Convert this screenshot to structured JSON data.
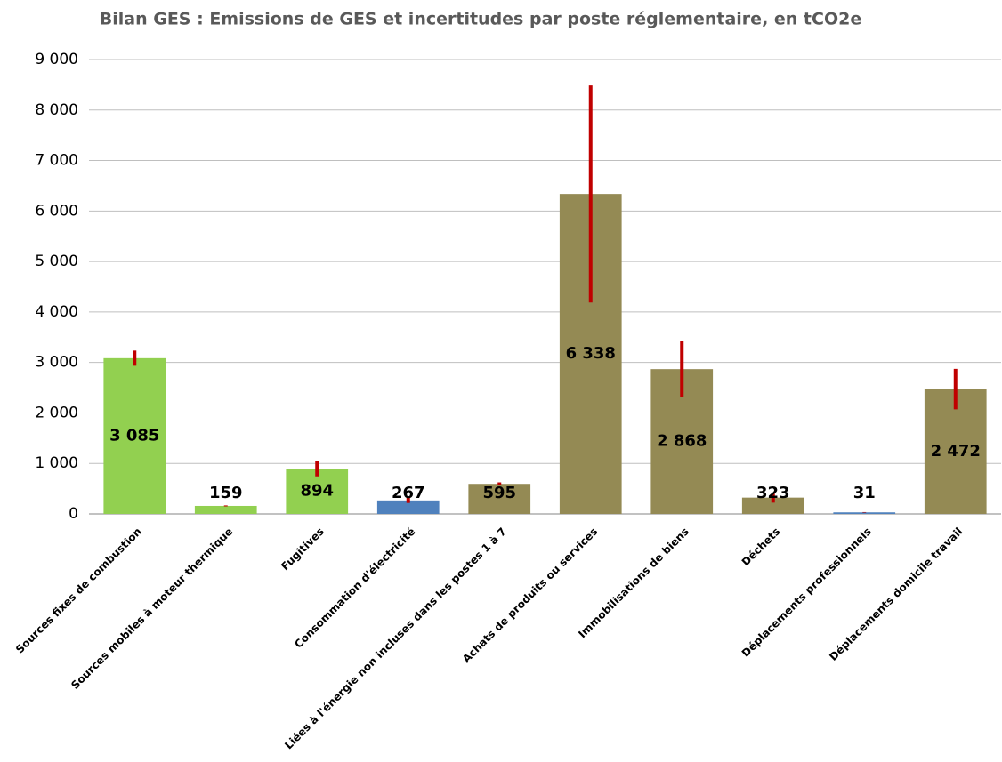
{
  "chart_data": {
    "type": "bar",
    "title": "Bilan GES : Emissions de GES et incertitudes par poste réglementaire, en tCO2e",
    "categories": [
      "Sources fixes de combustion",
      "Sources mobiles à moteur thermique",
      "Fugitives",
      "Consommation d'électricité",
      "Liées à l'énergie non incluses dans les postes 1 à 7",
      "Achats de produits ou services",
      "Immobilisations de biens",
      "Déchets",
      "Déplacements professionnels",
      "Déplacements domicile travail"
    ],
    "values": [
      3085,
      159,
      894,
      267,
      595,
      6338,
      2868,
      323,
      31,
      2472
    ],
    "value_labels": [
      "3 085",
      "159",
      "894",
      "267",
      "595",
      "6 338",
      "2 868",
      "323",
      "31",
      "2 472"
    ],
    "errors": [
      150,
      10,
      150,
      50,
      30,
      2150,
      560,
      100,
      5,
      400
    ],
    "colors": [
      "#92d050",
      "#92d050",
      "#92d050",
      "#4f81bd",
      "#948a54",
      "#948a54",
      "#948a54",
      "#948a54",
      "#4f81bd",
      "#948a54"
    ],
    "error_color": "#c00000",
    "ylim": [
      0,
      9000
    ],
    "yticks": [
      0,
      {
        "value": 1000,
        "label": "1 000"
      },
      {
        "value": 2000,
        "label": "2 000"
      },
      {
        "value": 3000,
        "label": "3 000"
      },
      {
        "value": 4000,
        "label": "4 000"
      },
      {
        "value": 5000,
        "label": "5 000"
      },
      {
        "value": 6000,
        "label": "6 000"
      },
      {
        "value": 7000,
        "label": "7 000"
      },
      {
        "value": 8000,
        "label": "8 000"
      },
      {
        "value": 9000,
        "label": "9 000"
      }
    ],
    "grid": true
  }
}
